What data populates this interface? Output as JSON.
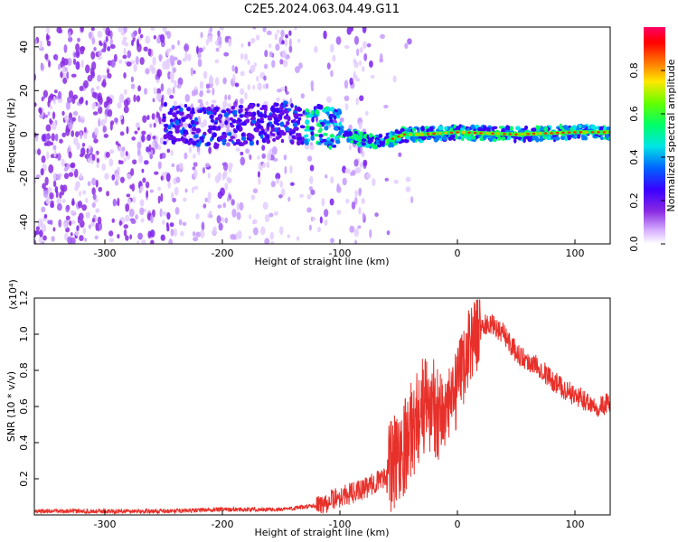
{
  "title": "C2E5.2024.063.04.49.G11",
  "chart_data": [
    {
      "type": "heatmap",
      "xlabel": "Height of straight line (km)",
      "ylabel": "Frequency (Hz)",
      "xlim": [
        -360,
        130
      ],
      "ylim": [
        -50,
        49
      ],
      "x_ticks": [
        -300,
        -200,
        -100,
        0,
        100
      ],
      "y_ticks": [
        -40,
        -20,
        0,
        20,
        40
      ],
      "colorbar": {
        "label": "Normalized spectral amplitude",
        "range": [
          0,
          1
        ],
        "ticks": [
          0.0,
          0.2,
          0.4,
          0.6,
          0.8
        ],
        "colormap": "rainbow (white-purple-blue-cyan-green-yellow-red-magenta)"
      },
      "ridge_frequency_hz": [
        {
          "x": -240,
          "y": 5
        },
        {
          "x": -200,
          "y": 3
        },
        {
          "x": -150,
          "y": 6
        },
        {
          "x": -120,
          "y": 4
        },
        {
          "x": -100,
          "y": 2
        },
        {
          "x": -80,
          "y": -3
        },
        {
          "x": -60,
          "y": -3
        },
        {
          "x": -45,
          "y": 0
        },
        {
          "x": -30,
          "y": 0
        },
        {
          "x": 0,
          "y": 1
        },
        {
          "x": 50,
          "y": 0
        },
        {
          "x": 100,
          "y": 1
        },
        {
          "x": 130,
          "y": 1
        }
      ]
    },
    {
      "type": "line",
      "xlabel": "Height of straight line (km)",
      "ylabel": "SNR (10 * v/v)",
      "y_multiplier": "(x10⁴)",
      "xlim": [
        -360,
        130
      ],
      "ylim": [
        0,
        1.2
      ],
      "x_ticks": [
        -300,
        -200,
        -100,
        0,
        100
      ],
      "y_ticks": [
        0.2,
        0.4,
        0.6,
        0.8,
        1.0,
        1.2
      ],
      "color": "#e8302a",
      "series": [
        {
          "name": "",
          "points": [
            [
              -360,
              0.02
            ],
            [
              -300,
              0.02
            ],
            [
              -250,
              0.02
            ],
            [
              -200,
              0.03
            ],
            [
              -150,
              0.03
            ],
            [
              -120,
              0.05
            ],
            [
              -100,
              0.1
            ],
            [
              -80,
              0.14
            ],
            [
              -60,
              0.22
            ],
            [
              -40,
              0.45
            ],
            [
              -30,
              0.6
            ],
            [
              -20,
              0.6
            ],
            [
              -10,
              0.55
            ],
            [
              0,
              0.7
            ],
            [
              10,
              0.95
            ],
            [
              20,
              1.05
            ],
            [
              30,
              1.05
            ],
            [
              40,
              1.0
            ],
            [
              50,
              0.9
            ],
            [
              60,
              0.85
            ],
            [
              70,
              0.82
            ],
            [
              80,
              0.75
            ],
            [
              90,
              0.7
            ],
            [
              100,
              0.66
            ],
            [
              110,
              0.63
            ],
            [
              120,
              0.6
            ],
            [
              130,
              0.62
            ]
          ]
        }
      ]
    }
  ]
}
